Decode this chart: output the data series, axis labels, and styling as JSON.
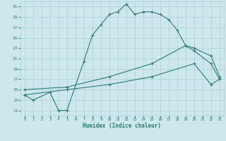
{
  "xlabel": "Humidex (Indice chaleur)",
  "bg_color": "#cce8ec",
  "grid_color": "#aad0d5",
  "line_color": "#2d7b72",
  "xlim": [
    -0.5,
    23.5
  ],
  "ylim": [
    10.0,
    32.0
  ],
  "xticks": [
    0,
    1,
    2,
    3,
    4,
    5,
    6,
    7,
    8,
    9,
    10,
    11,
    12,
    13,
    14,
    15,
    16,
    17,
    18,
    19,
    20,
    21,
    22,
    23
  ],
  "yticks": [
    11,
    13,
    15,
    17,
    19,
    21,
    23,
    25,
    27,
    29,
    31
  ],
  "curve1_x": [
    0,
    1,
    3,
    4,
    5,
    7,
    8,
    9,
    10,
    11,
    12,
    13,
    14,
    15,
    16,
    17,
    18,
    19,
    20,
    22,
    23
  ],
  "curve1_y": [
    14,
    13,
    14.5,
    11,
    11,
    20.5,
    25.5,
    27.5,
    29.5,
    30.0,
    31.5,
    29.5,
    30.0,
    30.0,
    29.5,
    28.5,
    26.5,
    23.5,
    22.5,
    20.0,
    17.0
  ],
  "curve2_x": [
    0,
    5,
    10,
    15,
    19,
    20,
    22,
    23
  ],
  "curve2_y": [
    15.0,
    15.5,
    17.5,
    20.0,
    23.5,
    23.0,
    21.5,
    17.5
  ],
  "curve3_x": [
    0,
    5,
    10,
    15,
    20,
    22,
    23
  ],
  "curve3_y": [
    14.0,
    15.0,
    16.0,
    17.5,
    20.0,
    16.0,
    17.0
  ]
}
